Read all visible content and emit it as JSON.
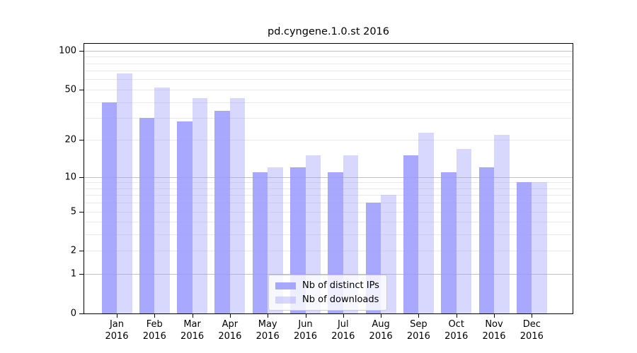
{
  "title": "pd.cyngene.1.0.st 2016",
  "legend": {
    "items": [
      {
        "label": "Nb of distinct IPs",
        "series": 0
      },
      {
        "label": "Nb of downloads",
        "series": 1
      }
    ]
  },
  "colors": {
    "bar_base": "153,153,255",
    "bar_dark_alpha": 0.85,
    "bar_light_alpha": 0.38,
    "grid_minor": "#e9e9e9",
    "grid_major": "#c2c2c2",
    "axis": "#000000"
  },
  "chart_data": {
    "type": "bar",
    "title": "pd.cyngene.1.0.st 2016",
    "categories": [
      "Jan",
      "Feb",
      "Mar",
      "Apr",
      "May",
      "Jun",
      "Jul",
      "Aug",
      "Sep",
      "Oct",
      "Nov",
      "Dec"
    ],
    "category_year": "2016",
    "series": [
      {
        "name": "Nb of distinct IPs",
        "values": [
          40,
          30,
          28,
          34,
          11,
          12,
          11,
          6,
          15,
          11,
          12,
          9
        ]
      },
      {
        "name": "Nb of downloads",
        "values": [
          67,
          52,
          43,
          43,
          12,
          15,
          15,
          7,
          23,
          17,
          22,
          9
        ]
      }
    ],
    "yscale": "log1p",
    "ylim": [
      0,
      113
    ],
    "ytick_labels": [
      "100",
      "50",
      "20",
      "10",
      "5",
      "2",
      "1",
      "0"
    ],
    "ytick_values": [
      100,
      50,
      20,
      10,
      5,
      2,
      1,
      0
    ],
    "grid_minor_values": [
      2,
      3,
      4,
      5,
      6,
      7,
      8,
      9,
      20,
      30,
      40,
      50,
      60,
      70,
      80,
      90
    ],
    "grid_major_values": [
      1,
      10,
      100
    ],
    "grid": "on",
    "legend_position": "lower-center"
  }
}
